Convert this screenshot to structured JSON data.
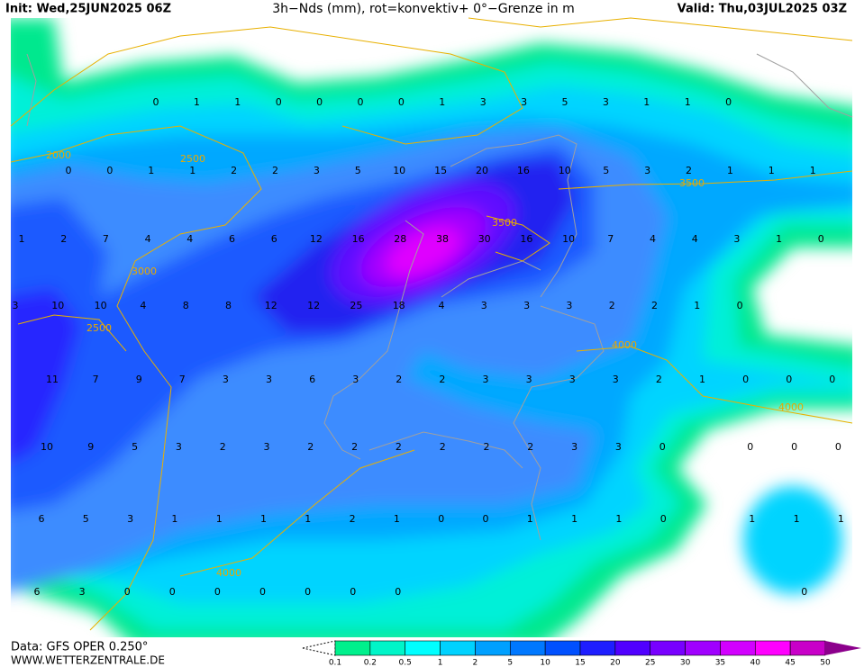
{
  "header": {
    "init": "Init: Wed,25JUN2025 06Z",
    "title": "3h−Nds (mm), rot=konvektiv+ 0°−Grenze in m",
    "valid": "Valid: Thu,03JUL2025 03Z"
  },
  "footer": {
    "data": "Data: GFS OPER 0.250°",
    "site": "WWW.WETTERZENTRALE.DE"
  },
  "colorbar": {
    "labels": [
      0.1,
      0.2,
      0.5,
      1,
      2,
      5,
      10,
      15,
      20,
      25,
      30,
      35,
      40,
      45,
      50
    ]
  },
  "freezing_level_labels": [
    2000,
    2500,
    3000,
    2500,
    3500,
    3500,
    4000,
    4000,
    4000
  ],
  "precip_grid": {
    "rows": [
      [
        0,
        1,
        1,
        0,
        0,
        0,
        0,
        1,
        3,
        3,
        5,
        3,
        1,
        1,
        0
      ],
      [
        0,
        0,
        1,
        1,
        2,
        2,
        3,
        5,
        10,
        15,
        20,
        16,
        10,
        5,
        3,
        2,
        1,
        1,
        1
      ],
      [
        1,
        2,
        7,
        4,
        4,
        6,
        6,
        12,
        16,
        28,
        38,
        30,
        16,
        10,
        7,
        4,
        4,
        3,
        1,
        0
      ],
      [
        3,
        10,
        10,
        4,
        8,
        8,
        12,
        12,
        25,
        18,
        4,
        3,
        3,
        3,
        2,
        2,
        1,
        0
      ],
      [
        11,
        7,
        9,
        7,
        3,
        3,
        6,
        3,
        2,
        2,
        3,
        3,
        3,
        3,
        2,
        1,
        0,
        0,
        0
      ],
      [
        10,
        9,
        5,
        3,
        2,
        3,
        2,
        2,
        2,
        2,
        2,
        2,
        3,
        3,
        0,
        null,
        0,
        0,
        0
      ],
      [
        6,
        5,
        3,
        1,
        1,
        1,
        1,
        2,
        1,
        0,
        0,
        1,
        1,
        1,
        0,
        null,
        1,
        1,
        1
      ],
      [
        6,
        3,
        0,
        0,
        0,
        0,
        0,
        0,
        0,
        null,
        null,
        null,
        null,
        null,
        null,
        null,
        null,
        0
      ]
    ]
  }
}
